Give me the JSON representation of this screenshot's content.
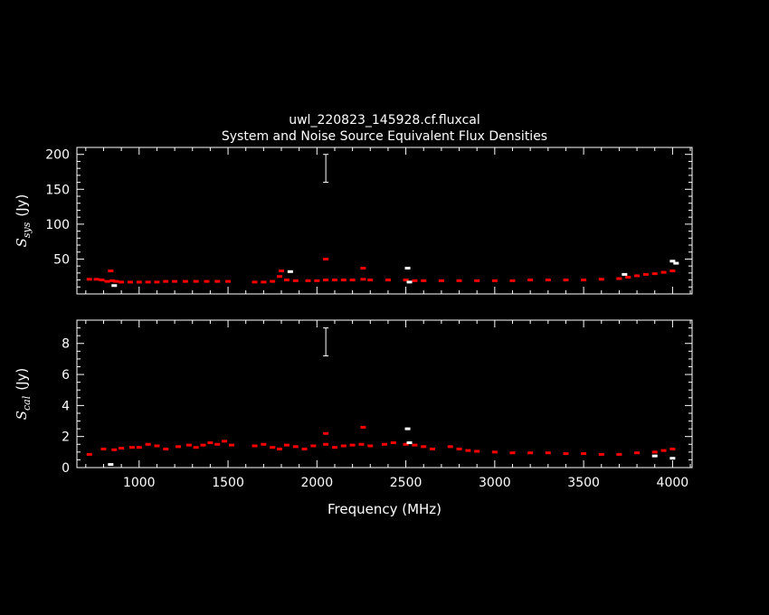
{
  "title_line1": "uwl_220823_145928.cf.fluxcal",
  "title_line2": "System and Noise Source Equivalent Flux Densities",
  "colors": {
    "background": "#000000",
    "axes": "#ffffff",
    "series_red": "#ff0000",
    "series_white": "#ffffff"
  },
  "chart_data": [
    {
      "type": "scatter",
      "panel": "top",
      "ylabel_main": "S",
      "ylabel_sub": "sys",
      "ylabel_unit": "(Jy)",
      "ylim": [
        0,
        210
      ],
      "xlim": [
        650,
        4110
      ],
      "y_ticks": [
        "50",
        "100",
        "150",
        "200"
      ],
      "y_tick_values": [
        50,
        100,
        150,
        200
      ],
      "grid": false,
      "series": [
        {
          "color": "red",
          "points": [
            [
              720,
              21
            ],
            [
              760,
              21
            ],
            [
              790,
              20
            ],
            [
              820,
              18
            ],
            [
              850,
              19
            ],
            [
              870,
              18
            ],
            [
              900,
              17
            ],
            [
              950,
              17
            ],
            [
              1000,
              17
            ],
            [
              1050,
              17
            ],
            [
              1100,
              17
            ],
            [
              1150,
              18
            ],
            [
              1200,
              18
            ],
            [
              1260,
              18
            ],
            [
              1320,
              18
            ],
            [
              1380,
              18
            ],
            [
              1440,
              18
            ],
            [
              1500,
              18
            ],
            [
              1650,
              17
            ],
            [
              1700,
              17
            ],
            [
              1750,
              18
            ],
            [
              1790,
              25
            ],
            [
              1800,
              33
            ],
            [
              1830,
              20
            ],
            [
              1880,
              19
            ],
            [
              1950,
              19
            ],
            [
              2000,
              19
            ],
            [
              2050,
              20
            ],
            [
              2100,
              20
            ],
            [
              2150,
              20
            ],
            [
              2200,
              20
            ],
            [
              2260,
              21
            ],
            [
              2300,
              20
            ],
            [
              2400,
              20
            ],
            [
              2500,
              20
            ],
            [
              2550,
              19
            ],
            [
              2600,
              19
            ],
            [
              2700,
              19
            ],
            [
              2800,
              19
            ],
            [
              2900,
              19
            ],
            [
              3000,
              19
            ],
            [
              3100,
              19
            ],
            [
              3200,
              20
            ],
            [
              3300,
              20
            ],
            [
              3400,
              20
            ],
            [
              3500,
              20
            ],
            [
              3600,
              21
            ],
            [
              3700,
              22
            ],
            [
              3750,
              24
            ],
            [
              3800,
              26
            ],
            [
              3850,
              28
            ],
            [
              3900,
              29
            ],
            [
              3950,
              31
            ],
            [
              4000,
              33
            ],
            [
              2050,
              50
            ],
            [
              2260,
              37
            ],
            [
              840,
              33
            ]
          ]
        },
        {
          "color": "white",
          "points": [
            [
              860,
              12
            ],
            [
              2510,
              37
            ],
            [
              2520,
              17
            ],
            [
              3730,
              28
            ],
            [
              4000,
              47
            ],
            [
              4020,
              44
            ],
            [
              1850,
              32
            ]
          ]
        }
      ],
      "error_bar": {
        "x": 2050,
        "ylow": 160,
        "yhigh": 200
      }
    },
    {
      "type": "scatter",
      "panel": "bottom",
      "ylabel_main": "S",
      "ylabel_sub": "cal",
      "ylabel_unit": "(Jy)",
      "xlabel": "Frequency (MHz)",
      "ylim": [
        0,
        9.5
      ],
      "xlim": [
        650,
        4110
      ],
      "y_ticks": [
        "0",
        "2",
        "4",
        "6",
        "8"
      ],
      "y_tick_values": [
        0,
        2,
        4,
        6,
        8
      ],
      "x_ticks": [
        "1000",
        "1500",
        "2000",
        "2500",
        "3000",
        "3500",
        "4000"
      ],
      "x_tick_values": [
        1000,
        1500,
        2000,
        2500,
        3000,
        3500,
        4000
      ],
      "grid": false,
      "series": [
        {
          "color": "red",
          "points": [
            [
              720,
              0.85
            ],
            [
              800,
              1.2
            ],
            [
              860,
              1.15
            ],
            [
              900,
              1.25
            ],
            [
              960,
              1.3
            ],
            [
              1000,
              1.3
            ],
            [
              1050,
              1.5
            ],
            [
              1100,
              1.4
            ],
            [
              1150,
              1.2
            ],
            [
              1220,
              1.35
            ],
            [
              1280,
              1.45
            ],
            [
              1320,
              1.3
            ],
            [
              1360,
              1.45
            ],
            [
              1400,
              1.6
            ],
            [
              1440,
              1.5
            ],
            [
              1480,
              1.7
            ],
            [
              1520,
              1.45
            ],
            [
              1650,
              1.4
            ],
            [
              1700,
              1.5
            ],
            [
              1750,
              1.3
            ],
            [
              1790,
              1.2
            ],
            [
              1830,
              1.45
            ],
            [
              1880,
              1.35
            ],
            [
              1930,
              1.2
            ],
            [
              1980,
              1.4
            ],
            [
              2050,
              1.5
            ],
            [
              2100,
              1.3
            ],
            [
              2150,
              1.4
            ],
            [
              2200,
              1.45
            ],
            [
              2250,
              1.5
            ],
            [
              2300,
              1.4
            ],
            [
              2380,
              1.5
            ],
            [
              2430,
              1.6
            ],
            [
              2500,
              1.5
            ],
            [
              2550,
              1.45
            ],
            [
              2600,
              1.35
            ],
            [
              2650,
              1.2
            ],
            [
              2750,
              1.35
            ],
            [
              2800,
              1.2
            ],
            [
              2850,
              1.1
            ],
            [
              2900,
              1.05
            ],
            [
              3000,
              1.0
            ],
            [
              3100,
              0.95
            ],
            [
              3200,
              0.95
            ],
            [
              3300,
              0.95
            ],
            [
              3400,
              0.9
            ],
            [
              3500,
              0.9
            ],
            [
              3600,
              0.85
            ],
            [
              3700,
              0.85
            ],
            [
              3800,
              0.95
            ],
            [
              3900,
              1.0
            ],
            [
              3950,
              1.1
            ],
            [
              4000,
              1.2
            ],
            [
              2050,
              2.2
            ],
            [
              2260,
              2.6
            ]
          ]
        },
        {
          "color": "white",
          "points": [
            [
              840,
              0.2
            ],
            [
              2510,
              2.5
            ],
            [
              2520,
              1.6
            ],
            [
              3900,
              0.75
            ],
            [
              4000,
              0.6
            ]
          ]
        }
      ],
      "error_bar": {
        "x": 2050,
        "ylow": 7.2,
        "yhigh": 9.0
      }
    }
  ]
}
